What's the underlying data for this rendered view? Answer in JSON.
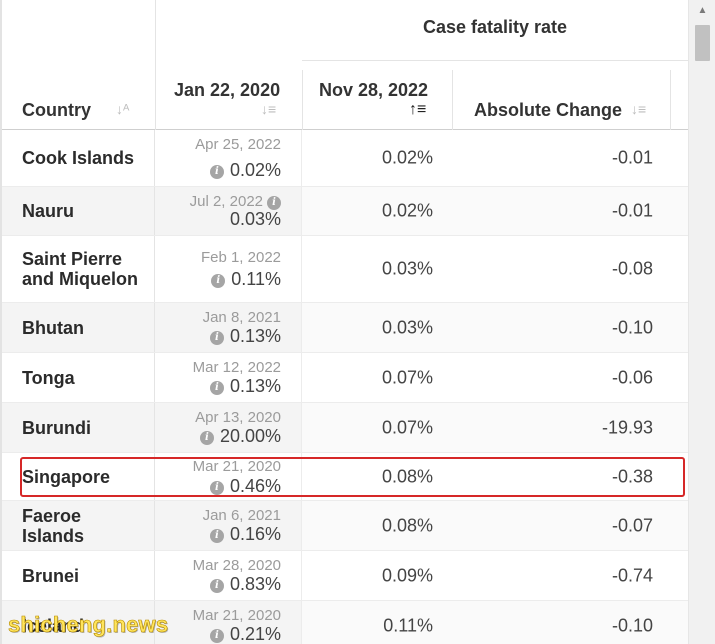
{
  "header": {
    "group_title": "Case fatality rate",
    "col_country": "Country",
    "col_jan": "Jan 22, 2020",
    "col_nov": "Nov 28, 2022",
    "col_change": "Absolute Change"
  },
  "rows": [
    {
      "country": "Cook Islands",
      "jan_date": "Apr 25, 2022",
      "jan_value": "0.02%",
      "nov_value": "0.02%",
      "change": "-0.01",
      "info_after_date": false
    },
    {
      "country": "Nauru",
      "jan_date": "Jul 2, 2022",
      "jan_value": "0.03%",
      "nov_value": "0.02%",
      "change": "-0.01",
      "info_after_date": true
    },
    {
      "country": "Saint Pierre and Miquelon",
      "jan_date": "Feb 1, 2022",
      "jan_value": "0.11%",
      "nov_value": "0.03%",
      "change": "-0.08",
      "info_after_date": false
    },
    {
      "country": "Bhutan",
      "jan_date": "Jan 8, 2021",
      "jan_value": "0.13%",
      "nov_value": "0.03%",
      "change": "-0.10",
      "info_after_date": false
    },
    {
      "country": "Tonga",
      "jan_date": "Mar 12, 2022",
      "jan_value": "0.13%",
      "nov_value": "0.07%",
      "change": "-0.06",
      "info_after_date": false
    },
    {
      "country": "Burundi",
      "jan_date": "Apr 13, 2020",
      "jan_value": "20.00%",
      "nov_value": "0.07%",
      "change": "-19.93",
      "info_after_date": false
    },
    {
      "country": "Singapore",
      "jan_date": "Mar 21, 2020",
      "jan_value": "0.46%",
      "nov_value": "0.08%",
      "change": "-0.38",
      "info_after_date": false
    },
    {
      "country": "Faeroe Islands",
      "jan_date": "Jan 6, 2021",
      "jan_value": "0.16%",
      "nov_value": "0.08%",
      "change": "-0.07",
      "info_after_date": false
    },
    {
      "country": "Brunei",
      "jan_date": "Mar 28, 2020",
      "jan_value": "0.83%",
      "nov_value": "0.09%",
      "change": "-0.74",
      "info_after_date": false
    },
    {
      "country": "Iceland",
      "jan_date": "Mar 21, 2020",
      "jan_value": "0.21%",
      "nov_value": "0.11%",
      "change": "-0.10",
      "info_after_date": false
    }
  ],
  "highlighted_row": "Singapore",
  "watermark": "shicheng.news",
  "colors": {
    "highlight": "#d62828",
    "alt_row": "#f4f4f4",
    "watermark": "#ffe55c"
  },
  "icons": {
    "sort_country": "sort-alpha-icon",
    "sort_jan": "sort-desc-icon",
    "sort_nov": "sort-asc-active-icon",
    "sort_change": "sort-desc-icon",
    "info": "info-icon"
  }
}
